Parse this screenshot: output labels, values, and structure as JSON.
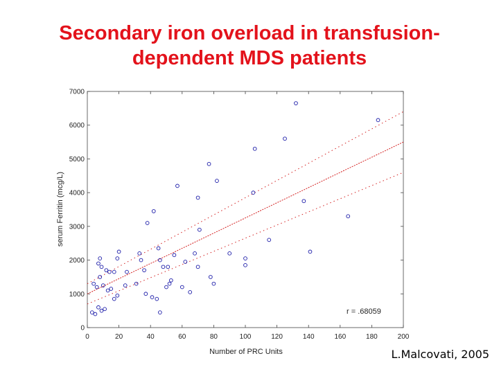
{
  "slide": {
    "title_line1": "Secondary iron overload in transfusion-",
    "title_line2": "dependent MDS patients",
    "credit": "L.Malcovati, 2005"
  },
  "colors": {
    "title": "#e3121b",
    "points": "#1a1aa8",
    "regression_line": "#d42020",
    "confidence_band": "#d42020"
  },
  "chart_data": {
    "type": "scatter",
    "title": "",
    "xlabel": "Number of PRC Units",
    "ylabel": "serum Ferritin (mcg/L)",
    "xlim": [
      0,
      200
    ],
    "ylim": [
      0,
      7000
    ],
    "x_ticks": [
      0,
      20,
      40,
      60,
      80,
      100,
      120,
      140,
      160,
      180,
      200
    ],
    "y_ticks": [
      0,
      1000,
      2000,
      3000,
      4000,
      5000,
      6000,
      7000
    ],
    "grid": false,
    "annotation": "r = .68059",
    "regression": {
      "x": [
        0,
        200
      ],
      "y": [
        1000,
        5500
      ]
    },
    "confidence_upper": {
      "x": [
        0,
        200
      ],
      "y": [
        1300,
        6400
      ]
    },
    "confidence_lower": {
      "x": [
        0,
        200
      ],
      "y": [
        700,
        4600
      ]
    },
    "points": [
      {
        "x": 3,
        "y": 450
      },
      {
        "x": 5,
        "y": 400
      },
      {
        "x": 7,
        "y": 600
      },
      {
        "x": 9,
        "y": 500
      },
      {
        "x": 11,
        "y": 550
      },
      {
        "x": 4,
        "y": 1300
      },
      {
        "x": 6,
        "y": 1200
      },
      {
        "x": 8,
        "y": 1500
      },
      {
        "x": 10,
        "y": 1250
      },
      {
        "x": 13,
        "y": 1100
      },
      {
        "x": 15,
        "y": 1150
      },
      {
        "x": 17,
        "y": 850
      },
      {
        "x": 19,
        "y": 950
      },
      {
        "x": 7,
        "y": 1900
      },
      {
        "x": 8,
        "y": 2050
      },
      {
        "x": 9,
        "y": 1800
      },
      {
        "x": 12,
        "y": 1700
      },
      {
        "x": 14,
        "y": 1650
      },
      {
        "x": 17,
        "y": 1650
      },
      {
        "x": 19,
        "y": 2050
      },
      {
        "x": 20,
        "y": 2250
      },
      {
        "x": 24,
        "y": 1250
      },
      {
        "x": 25,
        "y": 1650
      },
      {
        "x": 31,
        "y": 1300
      },
      {
        "x": 33,
        "y": 2200
      },
      {
        "x": 34,
        "y": 2000
      },
      {
        "x": 36,
        "y": 1700
      },
      {
        "x": 37,
        "y": 1000
      },
      {
        "x": 38,
        "y": 3100
      },
      {
        "x": 41,
        "y": 900
      },
      {
        "x": 42,
        "y": 3450
      },
      {
        "x": 44,
        "y": 850
      },
      {
        "x": 45,
        "y": 2350
      },
      {
        "x": 46,
        "y": 2000
      },
      {
        "x": 46,
        "y": 450
      },
      {
        "x": 48,
        "y": 1800
      },
      {
        "x": 50,
        "y": 1200
      },
      {
        "x": 51,
        "y": 1800
      },
      {
        "x": 52,
        "y": 1300
      },
      {
        "x": 53,
        "y": 1400
      },
      {
        "x": 55,
        "y": 2150
      },
      {
        "x": 57,
        "y": 4200
      },
      {
        "x": 60,
        "y": 1200
      },
      {
        "x": 62,
        "y": 1950
      },
      {
        "x": 65,
        "y": 1050
      },
      {
        "x": 68,
        "y": 2200
      },
      {
        "x": 70,
        "y": 3850
      },
      {
        "x": 70,
        "y": 1800
      },
      {
        "x": 71,
        "y": 2900
      },
      {
        "x": 77,
        "y": 4850
      },
      {
        "x": 78,
        "y": 1500
      },
      {
        "x": 80,
        "y": 1300
      },
      {
        "x": 82,
        "y": 4350
      },
      {
        "x": 90,
        "y": 2200
      },
      {
        "x": 100,
        "y": 2050
      },
      {
        "x": 100,
        "y": 1850
      },
      {
        "x": 105,
        "y": 4000
      },
      {
        "x": 106,
        "y": 5300
      },
      {
        "x": 115,
        "y": 2600
      },
      {
        "x": 125,
        "y": 5600
      },
      {
        "x": 132,
        "y": 6650
      },
      {
        "x": 137,
        "y": 3750
      },
      {
        "x": 141,
        "y": 2250
      },
      {
        "x": 165,
        "y": 3300
      },
      {
        "x": 184,
        "y": 6150
      }
    ]
  }
}
